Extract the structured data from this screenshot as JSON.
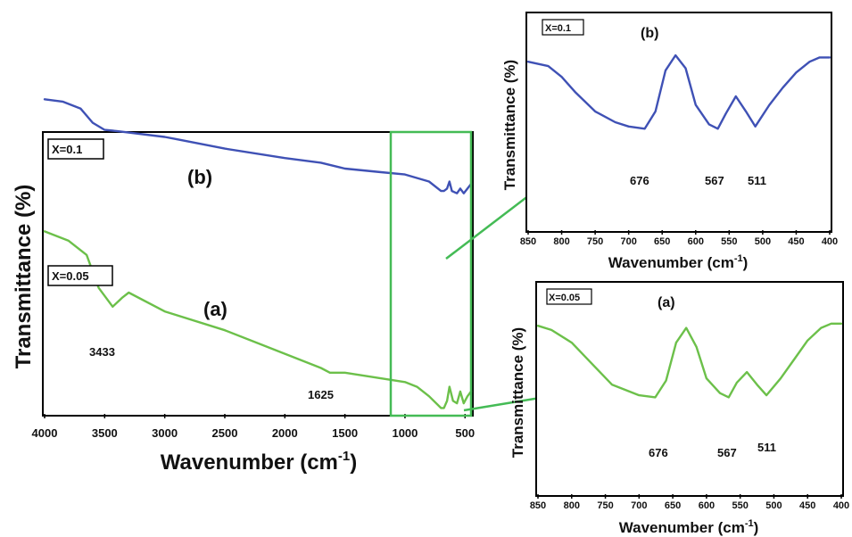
{
  "colors": {
    "series_b": "#3f51b5",
    "series_a": "#6cc04a",
    "connector": "#44bb55"
  },
  "chart_data": [
    {
      "id": "main",
      "type": "line",
      "xlabel": "Wavenumber (cm",
      "xlabel_sup": "-1",
      "xlabel_close": ")",
      "ylabel": "Transmittance (%)",
      "xlim": [
        4000,
        450
      ],
      "ylim": [
        0,
        100
      ],
      "x_ticks": [
        4000,
        3500,
        3000,
        2500,
        2000,
        1500,
        1000,
        500
      ],
      "series": [
        {
          "name": "X=0.1",
          "panel": "(b)",
          "x": [
            4000,
            3850,
            3700,
            3600,
            3500,
            3400,
            3000,
            2900,
            2500,
            2000,
            1700,
            1500,
            1200,
            1000,
            800,
            700,
            676,
            650,
            630,
            610,
            567,
            540,
            511,
            480,
            450
          ],
          "y": [
            83,
            82,
            79,
            73,
            70,
            69.5,
            67,
            66,
            62,
            58,
            56,
            53.5,
            52,
            51,
            48,
            44,
            44,
            45,
            48,
            44,
            43,
            45,
            43,
            45,
            47
          ]
        },
        {
          "name": "X=0.05",
          "panel": "(a)",
          "x": [
            4000,
            3800,
            3650,
            3550,
            3433,
            3350,
            3300,
            3000,
            2500,
            2000,
            1700,
            1625,
            1500,
            1000,
            900,
            800,
            700,
            676,
            650,
            630,
            600,
            567,
            540,
            511,
            480,
            450
          ],
          "y": [
            38,
            36,
            33,
            26,
            22,
            24,
            25,
            21,
            17,
            12,
            9,
            8,
            8,
            6,
            5,
            3,
            0.5,
            0.5,
            2,
            5,
            2,
            1.5,
            4,
            1.5,
            3,
            4
          ]
        }
      ],
      "legend": [
        "X=0.1",
        "X=0.05"
      ],
      "panel_labels": [
        "(b)",
        "(a)"
      ],
      "annotations": [
        "3433",
        "1625"
      ],
      "highlight_range": [
        1100,
        450
      ]
    },
    {
      "id": "inset-b",
      "type": "line",
      "xlabel": "Wavenumber (cm",
      "xlabel_sup": "-1",
      "xlabel_close": ")",
      "ylabel": "Transmittance (%)",
      "xlim": [
        850,
        400
      ],
      "ylim": [
        0,
        100
      ],
      "x_ticks": [
        850,
        800,
        750,
        700,
        650,
        600,
        550,
        500,
        450,
        400
      ],
      "series": [
        {
          "name": "X=0.1",
          "panel": "(b)",
          "x": [
            850,
            820,
            800,
            780,
            750,
            720,
            700,
            676,
            660,
            645,
            630,
            615,
            600,
            580,
            567,
            555,
            540,
            525,
            511,
            490,
            470,
            450,
            430,
            415,
            400
          ],
          "y": [
            78,
            76,
            71,
            64,
            55,
            50,
            48,
            47,
            55,
            74,
            81,
            75,
            58,
            49,
            47,
            54,
            62,
            55,
            48,
            58,
            66,
            73,
            78,
            80,
            80
          ]
        }
      ],
      "legend": [
        "X=0.1"
      ],
      "panel_labels": [
        "(b)"
      ],
      "annotations": [
        "676",
        "567",
        "511"
      ]
    },
    {
      "id": "inset-a",
      "type": "line",
      "xlabel": "Wavenumber (cm",
      "xlabel_sup": "-1",
      "xlabel_close": ")",
      "ylabel": "Transmittance (%)",
      "xlim": [
        850,
        400
      ],
      "ylim": [
        0,
        100
      ],
      "x_ticks": [
        850,
        800,
        750,
        700,
        650,
        600,
        550,
        500,
        450,
        400
      ],
      "series": [
        {
          "name": "X=0.05",
          "panel": "(a)",
          "x": [
            850,
            830,
            800,
            770,
            740,
            700,
            676,
            660,
            645,
            630,
            615,
            600,
            580,
            567,
            555,
            540,
            525,
            511,
            490,
            470,
            450,
            430,
            415,
            400
          ],
          "y": [
            80,
            78,
            72,
            62,
            52,
            47,
            46,
            54,
            72,
            79,
            70,
            55,
            48,
            46,
            53,
            58,
            52,
            47,
            55,
            64,
            73,
            79,
            81,
            81
          ]
        }
      ],
      "legend": [
        "X=0.05"
      ],
      "panel_labels": [
        "(a)"
      ],
      "annotations": [
        "676",
        "567",
        "511"
      ]
    }
  ]
}
